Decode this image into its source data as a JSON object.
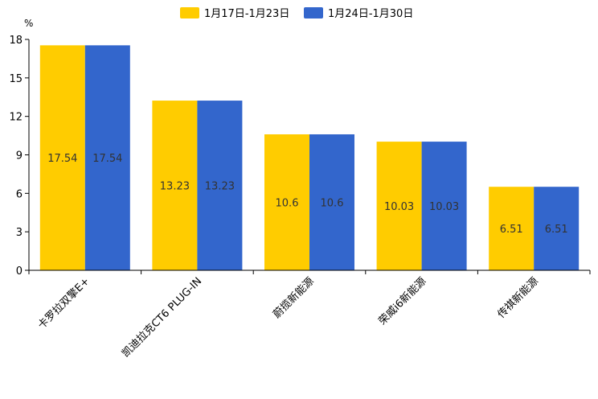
{
  "chart_data": {
    "type": "bar",
    "title": "",
    "xlabel": "",
    "ylabel": "",
    "y_unit": "%",
    "ylim": [
      0,
      18
    ],
    "yticks": [
      0,
      3,
      6,
      9,
      12,
      15,
      18
    ],
    "grid": false,
    "legend_position": "top-center",
    "categories": [
      "卡罗拉双擎E+",
      "凯迪拉克CT6 PLUG-IN",
      "蔚揽新能源",
      "荣威i6新能源",
      "传祺新能源"
    ],
    "series": [
      {
        "name": "1月17日-1月23日",
        "color": "#FFCC00",
        "values": [
          17.54,
          13.23,
          10.6,
          10.03,
          6.51
        ]
      },
      {
        "name": "1月24日-1月30日",
        "color": "#3366CC",
        "values": [
          17.54,
          13.23,
          10.6,
          10.03,
          6.51
        ]
      }
    ]
  }
}
